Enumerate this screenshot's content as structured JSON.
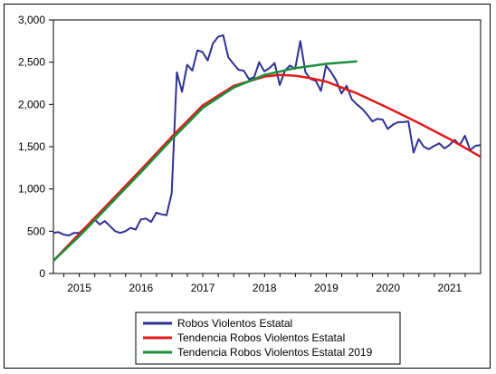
{
  "chart_data": {
    "type": "line",
    "y_ticks": [
      0,
      500,
      1000,
      1500,
      2000,
      2500,
      3000
    ],
    "y_tick_labels": [
      "0",
      "500",
      "1,000",
      "1,500",
      "2,000",
      "2,500",
      "3,000"
    ],
    "ylim": [
      0,
      3000
    ],
    "x_range": [
      2014.58,
      2021.5
    ],
    "x_tick_labels": [
      "2015",
      "2016",
      "2017",
      "2018",
      "2019",
      "2020",
      "2021"
    ],
    "x_label_positions": [
      2015.0,
      2016.0,
      2017.0,
      2018.0,
      2019.0,
      2020.0,
      2021.0
    ],
    "grid": false,
    "legend_position": "bottom-center",
    "series": [
      {
        "name": "Robos Violentos Estatal",
        "color": "#2e3192",
        "x_start": 2014.58,
        "step": 0.08333,
        "values": [
          480,
          490,
          460,
          450,
          480,
          480,
          530,
          580,
          640,
          580,
          620,
          560,
          500,
          480,
          500,
          540,
          520,
          640,
          650,
          610,
          720,
          700,
          690,
          950,
          2380,
          2150,
          2470,
          2400,
          2640,
          2620,
          2520,
          2720,
          2800,
          2820,
          2560,
          2480,
          2410,
          2400,
          2300,
          2320,
          2500,
          2390,
          2430,
          2490,
          2230,
          2400,
          2460,
          2420,
          2750,
          2380,
          2300,
          2280,
          2160,
          2460,
          2380,
          2280,
          2130,
          2220,
          2060,
          2000,
          1950,
          1880,
          1800,
          1830,
          1820,
          1710,
          1760,
          1790,
          1790,
          1800,
          1430,
          1590,
          1500,
          1470,
          1510,
          1540,
          1480,
          1520,
          1580,
          1520,
          1630,
          1460,
          1510,
          1520
        ]
      },
      {
        "name": "Tendencia Robos Violentos Estatal",
        "color": "#e31a1c",
        "x": [
          2014.58,
          2015.0,
          2015.5,
          2016.0,
          2016.5,
          2017.0,
          2017.5,
          2018.0,
          2018.25,
          2018.5,
          2018.75,
          2019.0,
          2019.5,
          2020.0,
          2020.5,
          2021.0,
          2021.5
        ],
        "values": [
          150,
          470,
          850,
          1230,
          1620,
          1990,
          2220,
          2330,
          2350,
          2340,
          2310,
          2270,
          2130,
          1960,
          1780,
          1590,
          1380
        ]
      },
      {
        "name": "Tendencia Robos Violentos Estatal 2019",
        "color": "#1a8f3c",
        "x": [
          2014.58,
          2015.0,
          2015.5,
          2016.0,
          2016.5,
          2017.0,
          2017.5,
          2018.0,
          2018.5,
          2019.0,
          2019.5
        ],
        "values": [
          150,
          440,
          820,
          1200,
          1590,
          1960,
          2200,
          2350,
          2430,
          2480,
          2510
        ]
      }
    ]
  }
}
